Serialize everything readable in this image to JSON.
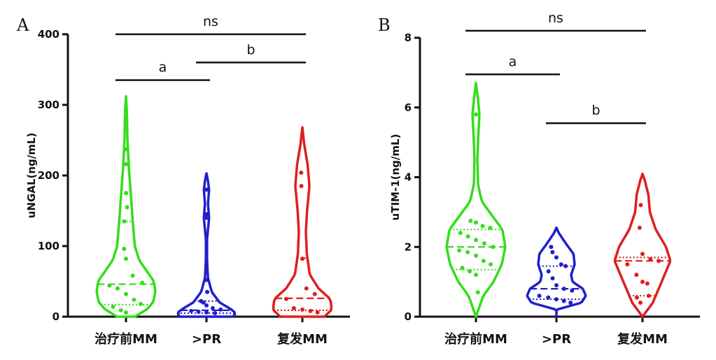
{
  "colors": {
    "green": "#33dd1a",
    "blue": "#1f1fcc",
    "red": "#dd1f1f",
    "axis": "#111111"
  },
  "chart_data": [
    {
      "type": "violin",
      "panel": "A",
      "ylabel": "uNGAL(ng/mL)",
      "ylim": [
        0,
        400
      ],
      "yticks": [
        "0",
        "100",
        "200",
        "300",
        "400"
      ],
      "categories": [
        "治疗前MM",
        ">PR",
        "复发MM"
      ],
      "series": [
        {
          "color": "green",
          "range": [
            0,
            312
          ],
          "median": 46,
          "q1": 17,
          "q3": 135,
          "points": [
            237,
            216,
            175,
            175,
            155,
            135,
            96,
            82,
            58,
            48,
            44,
            40,
            32,
            24,
            18,
            14,
            9,
            6
          ],
          "profile": [
            [
              0,
              0.3
            ],
            [
              10,
              0.7
            ],
            [
              20,
              0.92
            ],
            [
              35,
              1.0
            ],
            [
              50,
              0.95
            ],
            [
              65,
              0.7
            ],
            [
              80,
              0.45
            ],
            [
              100,
              0.3
            ],
            [
              130,
              0.24
            ],
            [
              170,
              0.17
            ],
            [
              210,
              0.1
            ],
            [
              250,
              0.05
            ],
            [
              290,
              0.03
            ],
            [
              312,
              0
            ]
          ]
        },
        {
          "color": "blue",
          "range": [
            0,
            203
          ],
          "median": 9,
          "q1": 5,
          "q3": 22,
          "points": [
            180,
            145,
            140,
            52,
            35,
            22,
            20,
            16,
            12,
            10,
            8,
            7,
            6,
            5
          ],
          "profile": [
            [
              0,
              0.9
            ],
            [
              5,
              1.0
            ],
            [
              10,
              0.85
            ],
            [
              20,
              0.45
            ],
            [
              35,
              0.18
            ],
            [
              55,
              0.05
            ],
            [
              80,
              0.02
            ],
            [
              110,
              0.02
            ],
            [
              140,
              0.09
            ],
            [
              160,
              0.05
            ],
            [
              180,
              0.09
            ],
            [
              195,
              0.04
            ],
            [
              203,
              0
            ]
          ]
        },
        {
          "color": "red",
          "range": [
            0,
            268
          ],
          "median": 26,
          "q1": 9,
          "q3": 83,
          "points": [
            204,
            185,
            82,
            40,
            32,
            25,
            12,
            10,
            8,
            6
          ],
          "profile": [
            [
              0,
              0.75
            ],
            [
              10,
              1.0
            ],
            [
              25,
              0.95
            ],
            [
              40,
              0.55
            ],
            [
              60,
              0.25
            ],
            [
              90,
              0.15
            ],
            [
              120,
              0.12
            ],
            [
              150,
              0.16
            ],
            [
              185,
              0.24
            ],
            [
              215,
              0.18
            ],
            [
              245,
              0.06
            ],
            [
              268,
              0
            ]
          ]
        }
      ],
      "significance": [
        {
          "label": "ns",
          "from": 0,
          "to": 2,
          "y": 400
        },
        {
          "label": "a",
          "from": 0,
          "to": 1,
          "y": 335
        },
        {
          "label": "b",
          "from": 1,
          "to": 2,
          "y": 360
        }
      ]
    },
    {
      "type": "violin",
      "panel": "B",
      "ylabel": "uTIM-1(ng/mL)",
      "ylim": [
        0,
        8
      ],
      "yticks": [
        "0",
        "2",
        "4",
        "6",
        "8"
      ],
      "categories": [
        "治疗前MM",
        ">PR",
        "复发MM"
      ],
      "series": [
        {
          "color": "green",
          "range": [
            0,
            6.7
          ],
          "median": 2.0,
          "q1": 1.35,
          "q3": 2.5,
          "points": [
            5.8,
            2.75,
            2.7,
            2.6,
            2.55,
            2.4,
            2.3,
            2.2,
            2.1,
            2.0,
            1.9,
            1.85,
            1.75,
            1.6,
            1.5,
            1.4,
            1.3,
            1.2,
            0.7
          ],
          "profile": [
            [
              0,
              0
            ],
            [
              0.6,
              0.25
            ],
            [
              1.0,
              0.6
            ],
            [
              1.5,
              0.88
            ],
            [
              2.0,
              1.0
            ],
            [
              2.5,
              0.9
            ],
            [
              2.9,
              0.55
            ],
            [
              3.3,
              0.2
            ],
            [
              3.8,
              0.07
            ],
            [
              4.5,
              0.05
            ],
            [
              5.2,
              0.08
            ],
            [
              5.8,
              0.12
            ],
            [
              6.3,
              0.06
            ],
            [
              6.7,
              0
            ]
          ]
        },
        {
          "color": "blue",
          "range": [
            0,
            2.55
          ],
          "median": 0.8,
          "q1": 0.5,
          "q3": 1.45,
          "points": [
            2.0,
            1.85,
            1.7,
            1.5,
            1.45,
            1.3,
            1.1,
            0.9,
            0.8,
            0.75,
            0.6,
            0.55,
            0.5,
            0.45,
            0.4
          ],
          "profile": [
            [
              0.2,
              0
            ],
            [
              0.4,
              0.85
            ],
            [
              0.6,
              1.0
            ],
            [
              0.8,
              0.9
            ],
            [
              1.0,
              0.55
            ],
            [
              1.2,
              0.5
            ],
            [
              1.5,
              0.62
            ],
            [
              1.8,
              0.58
            ],
            [
              2.1,
              0.32
            ],
            [
              2.4,
              0.08
            ],
            [
              2.55,
              0
            ]
          ]
        },
        {
          "color": "red",
          "range": [
            0,
            4.1
          ],
          "median": 1.6,
          "q1": 0.6,
          "q3": 1.7,
          "points": [
            3.2,
            2.55,
            1.8,
            1.65,
            1.6,
            1.5,
            1.2,
            1.0,
            0.95,
            0.6,
            0.55,
            0.4
          ],
          "profile": [
            [
              0,
              0
            ],
            [
              0.4,
              0.35
            ],
            [
              0.8,
              0.55
            ],
            [
              1.2,
              0.75
            ],
            [
              1.6,
              0.95
            ],
            [
              2.0,
              0.8
            ],
            [
              2.5,
              0.45
            ],
            [
              3.0,
              0.25
            ],
            [
              3.5,
              0.2
            ],
            [
              3.9,
              0.08
            ],
            [
              4.1,
              0
            ]
          ]
        }
      ],
      "significance": [
        {
          "label": "ns",
          "from": 0,
          "to": 2,
          "y": 8.2
        },
        {
          "label": "a",
          "from": 0,
          "to": 1,
          "y": 6.95
        },
        {
          "label": "b",
          "from": 1,
          "to": 2,
          "y": 5.55
        }
      ]
    }
  ]
}
